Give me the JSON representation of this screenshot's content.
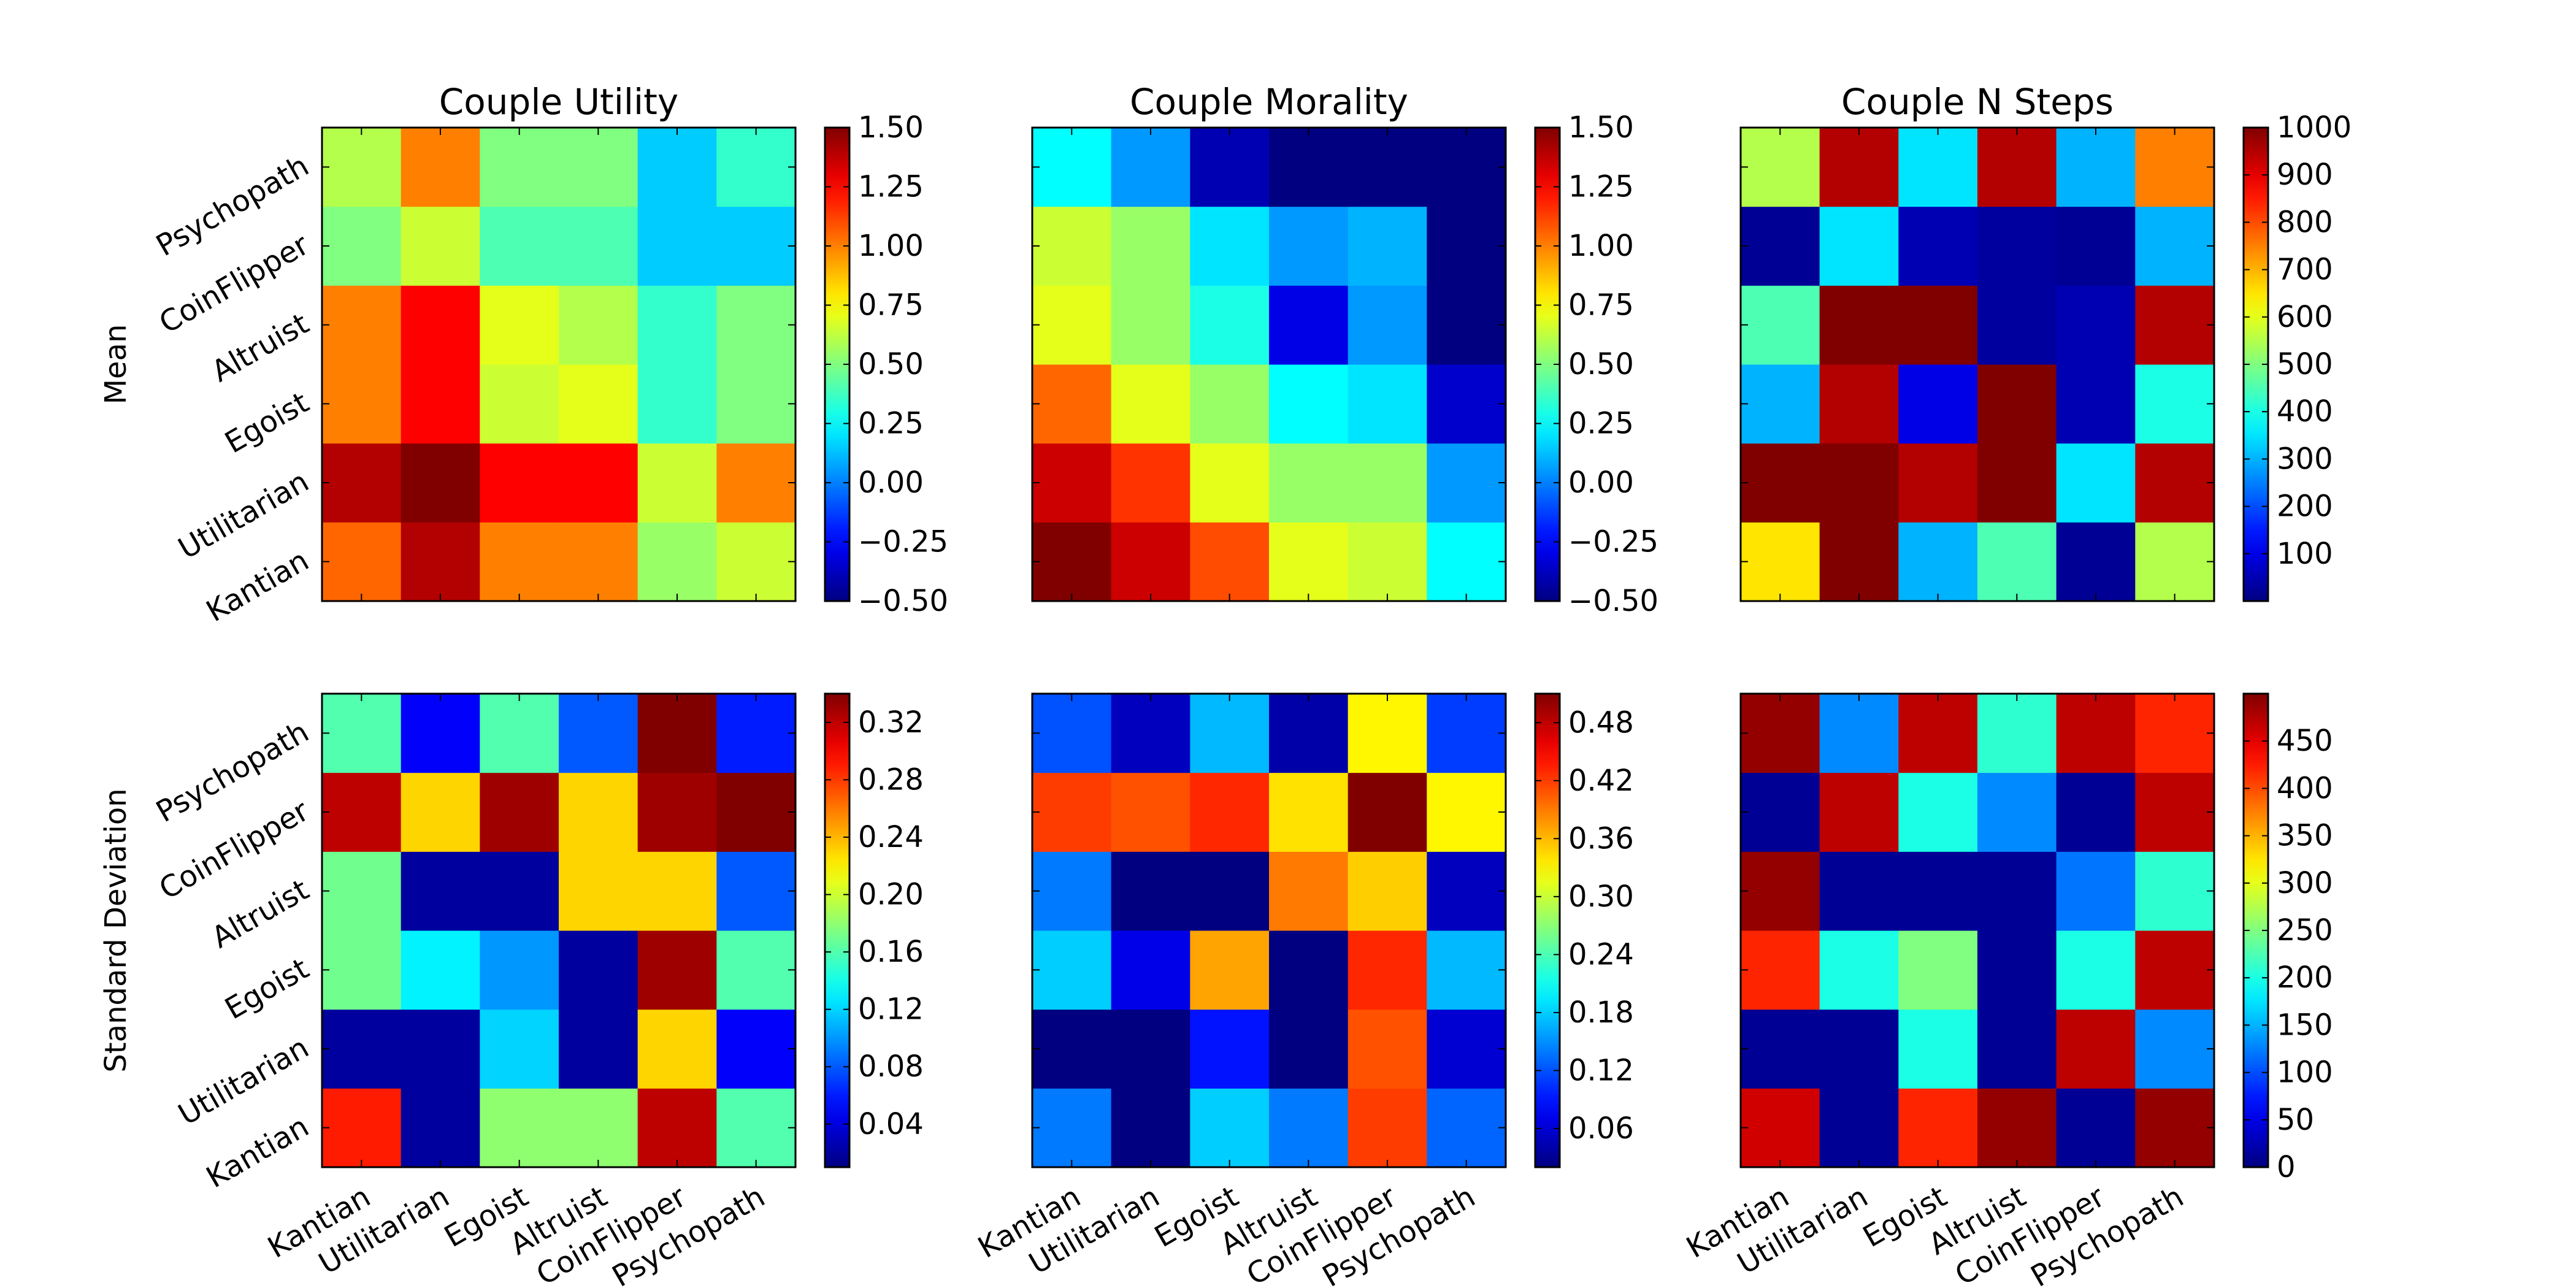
{
  "chart_data": {
    "type": "heatmap",
    "categories": [
      "Kantian",
      "Utilitarian",
      "Egoist",
      "Altruist",
      "CoinFlipper",
      "Psychopath"
    ],
    "row_labels": [
      "Mean",
      "Standard Deviation"
    ],
    "columns": [
      {
        "title": "Couple Utility",
        "mean": {
          "colorbar": [
            -0.5,
            1.5
          ],
          "colorbar_ticks": [
            "−0.50",
            "−0.25",
            "0.00",
            "0.25",
            "0.50",
            "0.75",
            "1.00",
            "1.25",
            "1.50"
          ],
          "values": [
            [
              1.05,
              1.4,
              1.0,
              1.0,
              0.55,
              0.65
            ],
            [
              1.4,
              1.6,
              1.25,
              1.25,
              0.65,
              1.0
            ],
            [
              1.0,
              1.25,
              0.65,
              0.7,
              0.35,
              0.5
            ],
            [
              1.0,
              1.25,
              0.7,
              0.6,
              0.35,
              0.5
            ],
            [
              0.5,
              0.65,
              0.4,
              0.4,
              0.15,
              0.15
            ],
            [
              0.6,
              1.0,
              0.5,
              0.5,
              0.15,
              0.35
            ]
          ]
        },
        "std": {
          "colorbar": [
            0.01,
            0.34
          ],
          "colorbar_ticks": [
            "0.04",
            "0.08",
            "0.12",
            "0.16",
            "0.20",
            "0.24",
            "0.28",
            "0.32"
          ],
          "values": [
            [
              0.29,
              0.02,
              0.18,
              0.18,
              0.32,
              0.16
            ],
            [
              0.02,
              0.02,
              0.12,
              0.02,
              0.23,
              0.05
            ],
            [
              0.17,
              0.13,
              0.1,
              0.02,
              0.33,
              0.16
            ],
            [
              0.17,
              0.02,
              0.02,
              0.23,
              0.23,
              0.08
            ],
            [
              0.32,
              0.23,
              0.33,
              0.23,
              0.33,
              0.34
            ],
            [
              0.16,
              0.05,
              0.16,
              0.08,
              0.34,
              0.06
            ]
          ]
        }
      },
      {
        "title": "Couple Morality",
        "mean": {
          "colorbar": [
            -0.5,
            1.5
          ],
          "colorbar_ticks": [
            "−0.50",
            "−0.25",
            "0.00",
            "0.25",
            "0.50",
            "0.75",
            "1.00",
            "1.25",
            "1.50"
          ],
          "values": [
            [
              1.55,
              1.35,
              1.1,
              0.7,
              0.65,
              0.25
            ],
            [
              1.35,
              1.15,
              0.7,
              0.55,
              0.55,
              0.05
            ],
            [
              1.05,
              0.7,
              0.55,
              0.25,
              0.2,
              -0.35
            ],
            [
              0.7,
              0.55,
              0.3,
              -0.3,
              0.05,
              -0.5
            ],
            [
              0.65,
              0.55,
              0.2,
              0.05,
              0.1,
              -0.5
            ],
            [
              0.25,
              0.05,
              -0.4,
              -0.5,
              -0.5,
              -0.5
            ]
          ]
        },
        "std": {
          "colorbar": [
            0.02,
            0.51
          ],
          "colorbar_ticks": [
            "0.06",
            "0.12",
            "0.18",
            "0.24",
            "0.30",
            "0.36",
            "0.42",
            "0.48"
          ],
          "values": [
            [
              0.14,
              0.02,
              0.18,
              0.14,
              0.42,
              0.13
            ],
            [
              0.02,
              0.02,
              0.09,
              0.02,
              0.41,
              0.06
            ],
            [
              0.18,
              0.07,
              0.37,
              0.02,
              0.43,
              0.17
            ],
            [
              0.14,
              0.02,
              0.02,
              0.39,
              0.35,
              0.05
            ],
            [
              0.42,
              0.41,
              0.43,
              0.34,
              0.51,
              0.33
            ],
            [
              0.12,
              0.05,
              0.17,
              0.04,
              0.33,
              0.11
            ]
          ]
        }
      },
      {
        "title": "Couple N Steps",
        "mean": {
          "colorbar": [
            0,
            1000
          ],
          "colorbar_ticks": [
            "100",
            "200",
            "300",
            "400",
            "500",
            "600",
            "700",
            "800",
            "900",
            "1000"
          ],
          "values": [
            [
              650,
              1000,
              300,
              450,
              20,
              550
            ],
            [
              1000,
              1000,
              950,
              1000,
              350,
              950
            ],
            [
              300,
              950,
              100,
              1000,
              50,
              400
            ],
            [
              450,
              1000,
              1000,
              30,
              50,
              950
            ],
            [
              20,
              350,
              50,
              30,
              20,
              300
            ],
            [
              550,
              950,
              350,
              950,
              300,
              750
            ]
          ]
        },
        "std": {
          "colorbar": [
            0,
            500
          ],
          "colorbar_ticks": [
            "0",
            "50",
            "100",
            "150",
            "200",
            "250",
            "300",
            "350",
            "400",
            "450"
          ],
          "values": [
            [
              460,
              10,
              420,
              490,
              10,
              490
            ],
            [
              10,
              10,
              200,
              10,
              470,
              130
            ],
            [
              420,
              200,
              250,
              10,
              200,
              470
            ],
            [
              490,
              10,
              10,
              10,
              120,
              210
            ],
            [
              10,
              470,
              200,
              130,
              10,
              470
            ],
            [
              490,
              130,
              470,
              210,
              470,
              420
            ]
          ]
        }
      }
    ]
  }
}
